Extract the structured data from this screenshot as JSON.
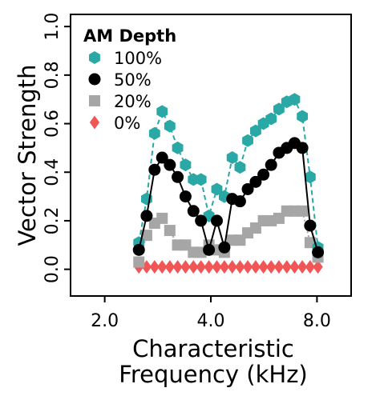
{
  "chart_data": {
    "type": "line",
    "title": "",
    "xlabel_lines": [
      "Characteristic",
      "Frequency (kHz)"
    ],
    "ylabel": "Vector Strength",
    "x_scale": "log",
    "xlim": [
      1.6,
      10
    ],
    "ylim": [
      -0.11,
      1.05
    ],
    "x_ticks": [
      2.0,
      4.0,
      8.0
    ],
    "x_tick_labels": [
      "2.0",
      "4.0",
      "8.0"
    ],
    "y_ticks": [
      0.0,
      0.2,
      0.4,
      0.6,
      0.8,
      1.0
    ],
    "y_tick_labels": [
      "0.0",
      "0.2",
      "0.4",
      "0.6",
      "0.8",
      "1.0"
    ],
    "grid": false,
    "legend": {
      "title": "AM Depth",
      "placement": "top-left"
    },
    "x": [
      2.5,
      2.63,
      2.77,
      2.91,
      3.06,
      3.22,
      3.39,
      3.57,
      3.75,
      3.95,
      4.16,
      4.37,
      4.6,
      4.84,
      5.09,
      5.36,
      5.64,
      5.93,
      6.24,
      6.57,
      6.91,
      7.27,
      7.65,
      8.05
    ],
    "series": [
      {
        "name": "100%",
        "marker": "hexagon",
        "color": "#2aa8a6",
        "line_style": "dashed",
        "values": [
          0.11,
          0.29,
          0.56,
          0.65,
          0.59,
          0.5,
          0.43,
          0.37,
          0.37,
          0.22,
          0.33,
          0.3,
          0.46,
          0.42,
          0.53,
          0.57,
          0.6,
          0.62,
          0.66,
          0.69,
          0.7,
          0.63,
          0.38,
          0.09
        ]
      },
      {
        "name": "50%",
        "marker": "circle",
        "color": "#000000",
        "line_style": "solid",
        "values": [
          0.08,
          0.22,
          0.41,
          0.46,
          0.43,
          0.38,
          0.3,
          0.24,
          0.2,
          0.08,
          0.2,
          0.09,
          0.29,
          0.28,
          0.33,
          0.36,
          0.39,
          0.43,
          0.48,
          0.5,
          0.52,
          0.5,
          0.18,
          0.07
        ]
      },
      {
        "name": "20%",
        "marker": "square",
        "color": "#a6a6a6",
        "line_style": "dotted",
        "values": [
          0.03,
          0.14,
          0.19,
          0.21,
          0.16,
          0.1,
          0.1,
          0.07,
          0.07,
          0.1,
          0.08,
          0.07,
          0.12,
          0.12,
          0.15,
          0.17,
          0.2,
          0.2,
          0.21,
          0.24,
          0.24,
          0.24,
          0.11,
          0.05
        ]
      },
      {
        "name": "0%",
        "marker": "diamond",
        "color": "#f25555",
        "line_style": "none",
        "values": [
          0.01,
          0.01,
          0.01,
          0.01,
          0.01,
          0.01,
          0.01,
          0.01,
          0.01,
          0.01,
          0.01,
          0.01,
          0.01,
          0.01,
          0.01,
          0.01,
          0.01,
          0.01,
          0.01,
          0.01,
          0.01,
          0.01,
          0.01,
          0.01
        ]
      }
    ]
  }
}
